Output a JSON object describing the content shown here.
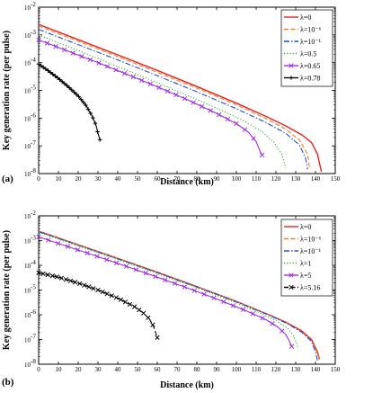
{
  "chart_data": [
    {
      "panel_label": "(a)",
      "type": "line",
      "xlabel": "Distance (km)",
      "ylabel": "Key generation rate (per pulse)",
      "xlim": [
        0,
        150
      ],
      "ylim_log10": [
        -8,
        -2
      ],
      "y_scale": "log",
      "xticks": [
        "0",
        "10",
        "20",
        "30",
        "40",
        "50",
        "60",
        "70",
        "80",
        "90",
        "100",
        "110",
        "120",
        "130",
        "140",
        "150"
      ],
      "yticks": [
        {
          "base": "10",
          "exp": "-8",
          "v": -8
        },
        {
          "base": "10",
          "exp": "-7",
          "v": -7
        },
        {
          "base": "10",
          "exp": "-6",
          "v": -6
        },
        {
          "base": "10",
          "exp": "-5",
          "v": -5
        },
        {
          "base": "10",
          "exp": "-4",
          "v": -4
        },
        {
          "base": "10",
          "exp": "-3",
          "v": -3
        },
        {
          "base": "10",
          "exp": "-2",
          "v": -2
        }
      ],
      "grid": false,
      "legend_position": "top-right",
      "series": [
        {
          "name": "λ=0",
          "color": "#e8231f",
          "style": "solid",
          "marker": "none",
          "points": [
            [
              0,
              -2.62
            ],
            [
              20,
              -3.17
            ],
            [
              40,
              -3.72
            ],
            [
              60,
              -4.28
            ],
            [
              80,
              -4.86
            ],
            [
              100,
              -5.46
            ],
            [
              115,
              -5.94
            ],
            [
              125,
              -6.28
            ],
            [
              133,
              -6.6
            ],
            [
              138,
              -6.88
            ],
            [
              141,
              -7.3
            ],
            [
              143,
              -7.93
            ]
          ]
        },
        {
          "name": "λ=10⁻⁶",
          "color": "#f07f1f",
          "style": "dashed",
          "marker": "none",
          "points": [
            [
              0,
              -2.68
            ],
            [
              20,
              -3.23
            ],
            [
              40,
              -3.78
            ],
            [
              60,
              -4.35
            ],
            [
              80,
              -4.92
            ],
            [
              100,
              -5.52
            ],
            [
              115,
              -6.02
            ],
            [
              125,
              -6.4
            ],
            [
              132,
              -6.8
            ],
            [
              136,
              -7.3
            ],
            [
              137,
              -7.8
            ]
          ]
        },
        {
          "name": "λ=10⁻¹",
          "color": "#1f50d8",
          "style": "dashdot",
          "marker": "none",
          "points": [
            [
              0,
              -2.8
            ],
            [
              20,
              -3.35
            ],
            [
              40,
              -3.9
            ],
            [
              60,
              -4.47
            ],
            [
              80,
              -5.05
            ],
            [
              100,
              -5.66
            ],
            [
              115,
              -6.16
            ],
            [
              125,
              -6.55
            ],
            [
              132,
              -6.98
            ],
            [
              135,
              -7.45
            ],
            [
              136,
              -7.85
            ]
          ]
        },
        {
          "name": "λ=0.5",
          "color": "#34b534",
          "style": "dotted",
          "marker": "none",
          "points": [
            [
              0,
              -3.0
            ],
            [
              20,
              -3.56
            ],
            [
              40,
              -4.14
            ],
            [
              60,
              -4.72
            ],
            [
              80,
              -5.33
            ],
            [
              95,
              -5.8
            ],
            [
              105,
              -6.15
            ],
            [
              113,
              -6.5
            ],
            [
              119,
              -6.88
            ],
            [
              123,
              -7.3
            ],
            [
              125,
              -7.8
            ]
          ]
        },
        {
          "name": "λ=0.65",
          "color": "#9e2ee8",
          "style": "solid",
          "marker": "x",
          "points": [
            [
              0,
              -3.18
            ],
            [
              15,
              -3.59
            ],
            [
              30,
              -4.0
            ],
            [
              45,
              -4.43
            ],
            [
              60,
              -4.87
            ],
            [
              75,
              -5.33
            ],
            [
              90,
              -5.83
            ],
            [
              100,
              -6.2
            ],
            [
              106,
              -6.5
            ],
            [
              110,
              -6.85
            ],
            [
              112,
              -7.2
            ],
            [
              113,
              -7.33
            ]
          ]
        },
        {
          "name": "λ=0.78",
          "color": "#000000",
          "style": "solid",
          "marker": "+",
          "points": [
            [
              0,
              -4.05
            ],
            [
              5,
              -4.3
            ],
            [
              10,
              -4.57
            ],
            [
              15,
              -4.87
            ],
            [
              20,
              -5.2
            ],
            [
              24,
              -5.55
            ],
            [
              27,
              -5.92
            ],
            [
              29,
              -6.25
            ],
            [
              30,
              -6.55
            ],
            [
              31,
              -6.78
            ]
          ]
        }
      ]
    },
    {
      "panel_label": "(b)",
      "type": "line",
      "xlabel": "Distance (km)",
      "ylabel": "Key generation rate (per pulse)",
      "xlim": [
        0,
        150
      ],
      "ylim_log10": [
        -8,
        -2
      ],
      "y_scale": "log",
      "xticks": [
        "0",
        "10",
        "20",
        "30",
        "40",
        "50",
        "60",
        "70",
        "80",
        "90",
        "100",
        "110",
        "120",
        "130",
        "140",
        "150"
      ],
      "yticks": [
        {
          "base": "10",
          "exp": "-8",
          "v": -8
        },
        {
          "base": "10",
          "exp": "-7",
          "v": -7
        },
        {
          "base": "10",
          "exp": "-6",
          "v": -6
        },
        {
          "base": "10",
          "exp": "-5",
          "v": -5
        },
        {
          "base": "10",
          "exp": "-4",
          "v": -4
        },
        {
          "base": "10",
          "exp": "-3",
          "v": -3
        },
        {
          "base": "10",
          "exp": "-2",
          "v": -2
        }
      ],
      "grid": false,
      "legend_position": "top-right",
      "series": [
        {
          "name": "λ=0",
          "color": "#e8231f",
          "style": "solid",
          "marker": "none",
          "points": [
            [
              0,
              -2.62
            ],
            [
              20,
              -3.17
            ],
            [
              40,
              -3.72
            ],
            [
              60,
              -4.28
            ],
            [
              80,
              -4.86
            ],
            [
              100,
              -5.46
            ],
            [
              115,
              -5.95
            ],
            [
              125,
              -6.3
            ],
            [
              133,
              -6.65
            ],
            [
              138,
              -7.0
            ],
            [
              141,
              -7.5
            ],
            [
              142,
              -7.8
            ]
          ]
        },
        {
          "name": "λ=10⁻⁶",
          "color": "#f07f1f",
          "style": "dashed",
          "marker": "none",
          "points": [
            [
              0,
              -2.63
            ],
            [
              20,
              -3.18
            ],
            [
              40,
              -3.73
            ],
            [
              60,
              -4.29
            ],
            [
              80,
              -4.87
            ],
            [
              100,
              -5.47
            ],
            [
              115,
              -5.96
            ],
            [
              125,
              -6.32
            ],
            [
              133,
              -6.68
            ],
            [
              138,
              -7.05
            ],
            [
              141,
              -7.55
            ],
            [
              142,
              -7.85
            ]
          ]
        },
        {
          "name": "λ=10⁻¹",
          "color": "#1f50d8",
          "style": "dashdot",
          "marker": "none",
          "points": [
            [
              0,
              -2.64
            ],
            [
              20,
              -3.19
            ],
            [
              40,
              -3.74
            ],
            [
              60,
              -4.3
            ],
            [
              80,
              -4.88
            ],
            [
              100,
              -5.48
            ],
            [
              115,
              -5.97
            ],
            [
              125,
              -6.33
            ],
            [
              133,
              -6.7
            ],
            [
              138,
              -7.08
            ],
            [
              140,
              -7.5
            ],
            [
              141,
              -7.85
            ]
          ]
        },
        {
          "name": "λ=1",
          "color": "#34b534",
          "style": "dotted",
          "marker": "none",
          "points": [
            [
              0,
              -2.67
            ],
            [
              20,
              -3.22
            ],
            [
              40,
              -3.77
            ],
            [
              60,
              -4.33
            ],
            [
              80,
              -4.91
            ],
            [
              100,
              -5.52
            ],
            [
              112,
              -5.93
            ],
            [
              120,
              -6.24
            ],
            [
              126,
              -6.55
            ],
            [
              129,
              -6.86
            ],
            [
              131,
              -7.3
            ]
          ]
        },
        {
          "name": "λ=5",
          "color": "#9e2ee8",
          "style": "solid",
          "marker": "x",
          "points": [
            [
              0,
              -2.85
            ],
            [
              15,
              -3.25
            ],
            [
              30,
              -3.65
            ],
            [
              45,
              -4.06
            ],
            [
              60,
              -4.48
            ],
            [
              75,
              -4.91
            ],
            [
              90,
              -5.36
            ],
            [
              105,
              -5.84
            ],
            [
              115,
              -6.2
            ],
            [
              121,
              -6.5
            ],
            [
              125,
              -6.8
            ],
            [
              127,
              -7.1
            ],
            [
              128,
              -7.28
            ]
          ]
        },
        {
          "name": "λ=5.16",
          "color": "#000000",
          "style": "dashed",
          "marker": "x",
          "points": [
            [
              0,
              -4.3
            ],
            [
              10,
              -4.48
            ],
            [
              20,
              -4.72
            ],
            [
              30,
              -5.0
            ],
            [
              40,
              -5.33
            ],
            [
              48,
              -5.65
            ],
            [
              53,
              -5.93
            ],
            [
              56,
              -6.17
            ],
            [
              58,
              -6.45
            ],
            [
              59,
              -6.68
            ],
            [
              60,
              -6.92
            ]
          ]
        }
      ]
    }
  ]
}
